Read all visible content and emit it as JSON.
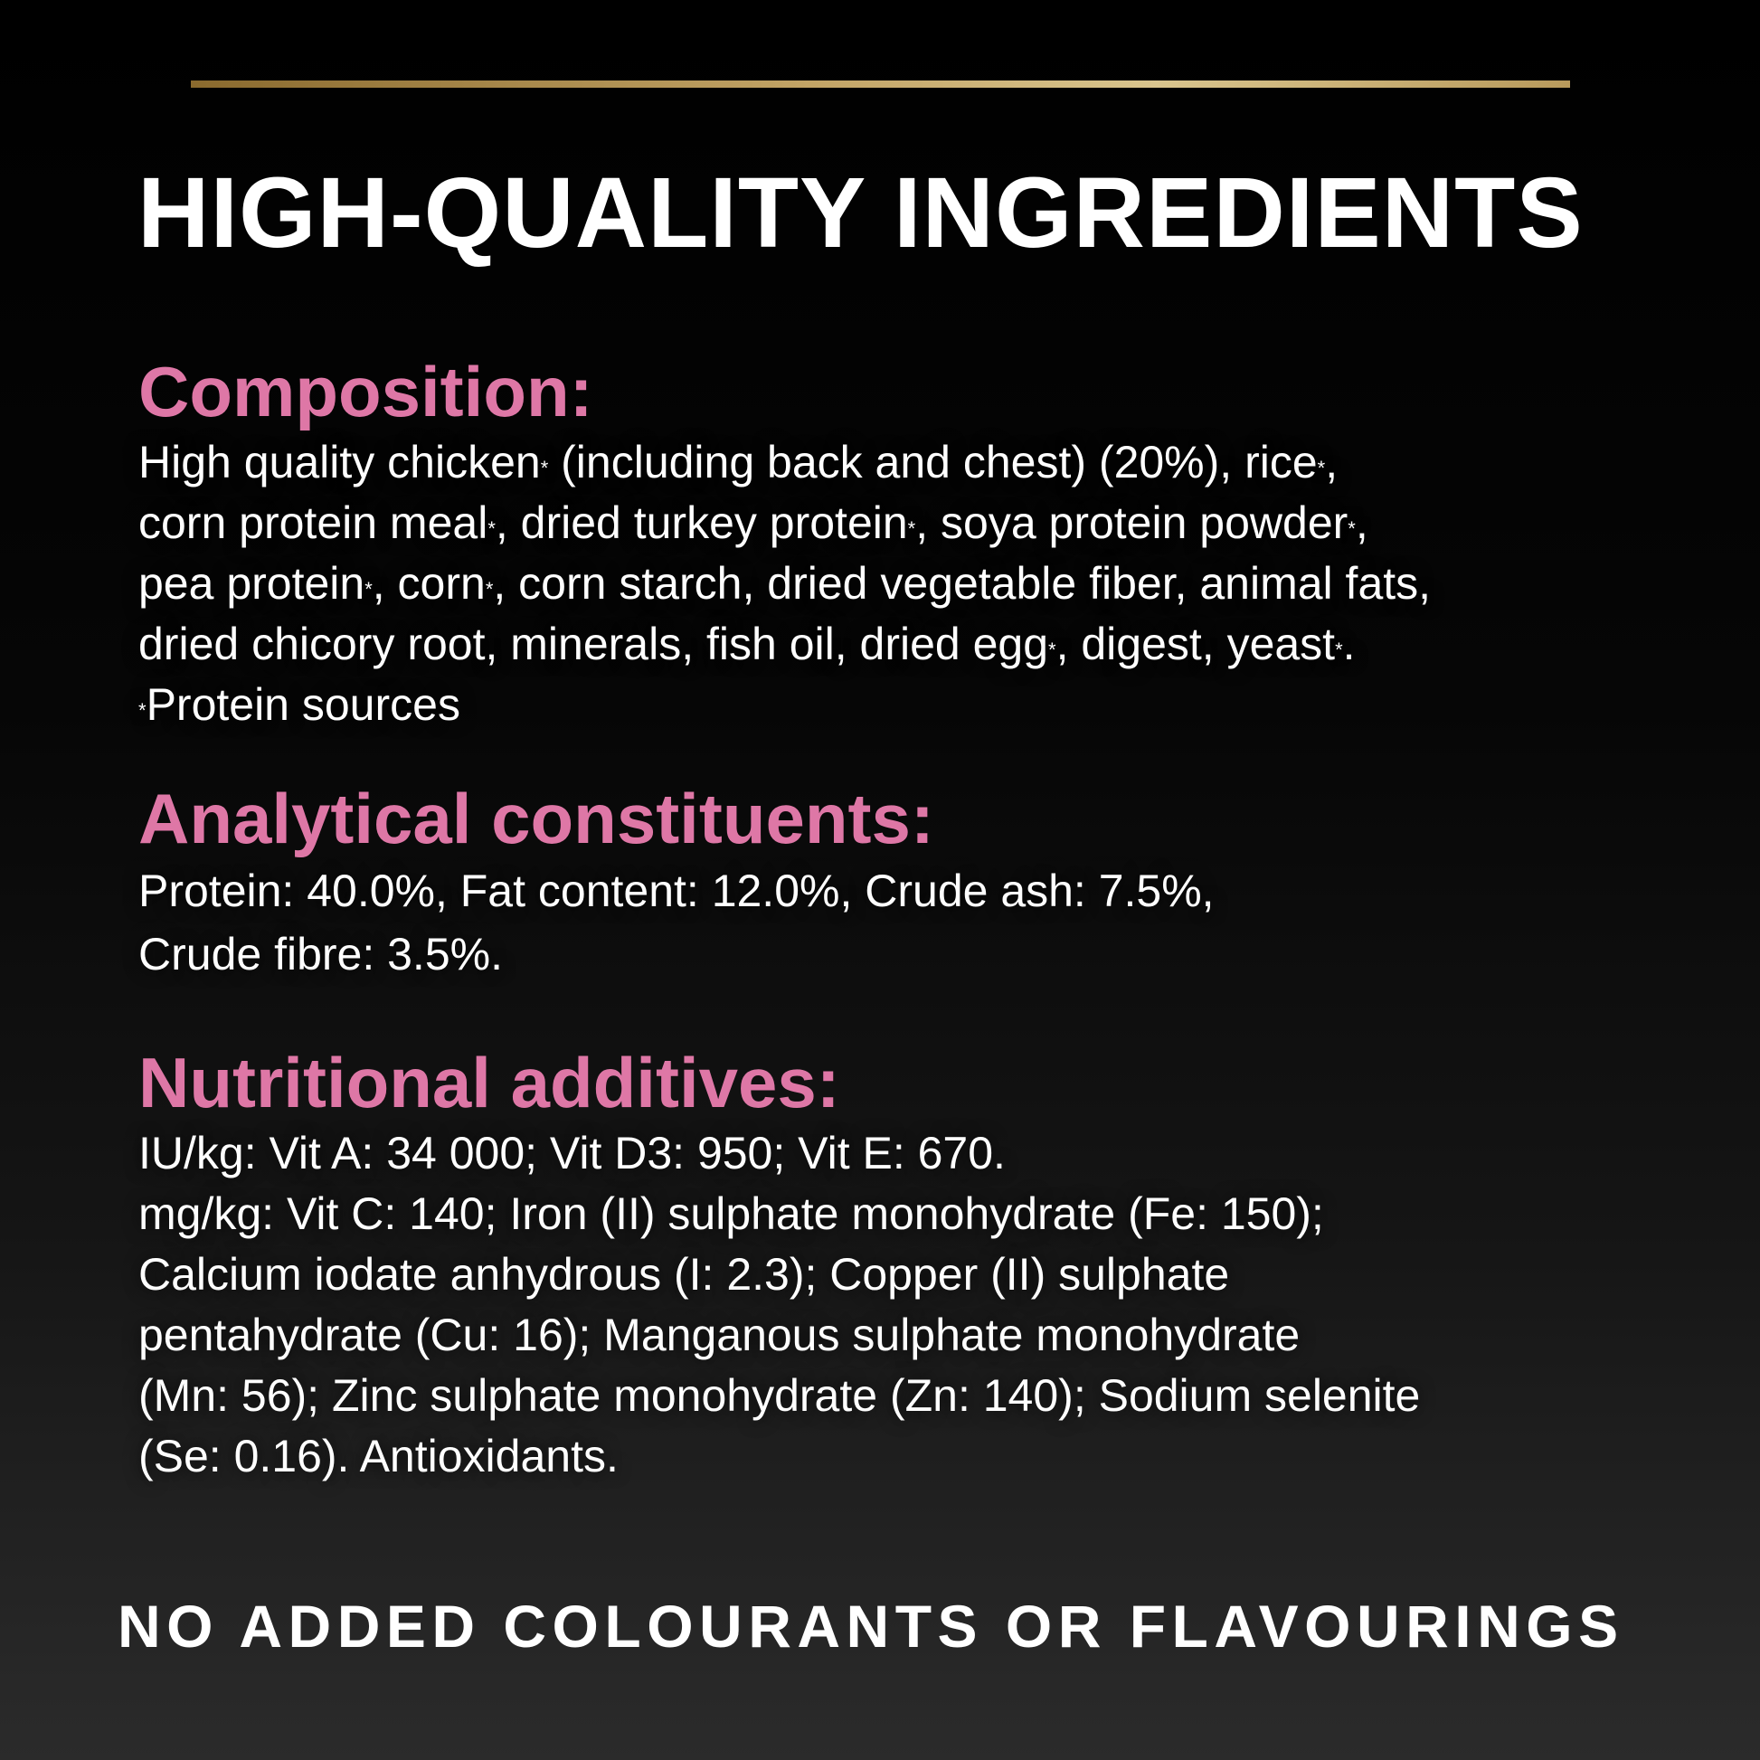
{
  "colors": {
    "heading": "#de77a6",
    "accent_line": "#c2a466",
    "text": "#ffffff",
    "background": "#000000"
  },
  "title": "HIGH-QUALITY INGREDIENTS",
  "composition": {
    "heading": "Composition:",
    "lines": [
      "High quality chicken* (including back and chest) (20%), rice*,",
      "corn protein meal*, dried turkey protein*, soya protein powder*,",
      "pea protein*, corn*, corn starch, dried vegetable fiber, animal fats,",
      "dried chicory root, minerals, fish oil, dried egg*, digest, yeast*.",
      "*Protein sources"
    ]
  },
  "analytical": {
    "heading": "Analytical constituents:",
    "lines": [
      "Protein: 40.0%, Fat content: 12.0%, Crude ash: 7.5%,",
      "Crude fibre: 3.5%."
    ]
  },
  "additives": {
    "heading": "Nutritional additives:",
    "lines": [
      "IU/kg: Vit A: 34 000; Vit D3: 950; Vit E: 670.",
      "mg/kg: Vit C: 140; Iron (II) sulphate monohydrate (Fe: 150);",
      "Calcium iodate anhydrous (I: 2.3); Copper (II) sulphate",
      "pentahydrate (Cu: 16); Manganous sulphate monohydrate",
      "(Mn: 56); Zinc sulphate monohydrate (Zn: 140); Sodium selenite",
      "(Se: 0.16). Antioxidants."
    ]
  },
  "footer": "NO ADDED COLOURANTS OR FLAVOURINGS"
}
